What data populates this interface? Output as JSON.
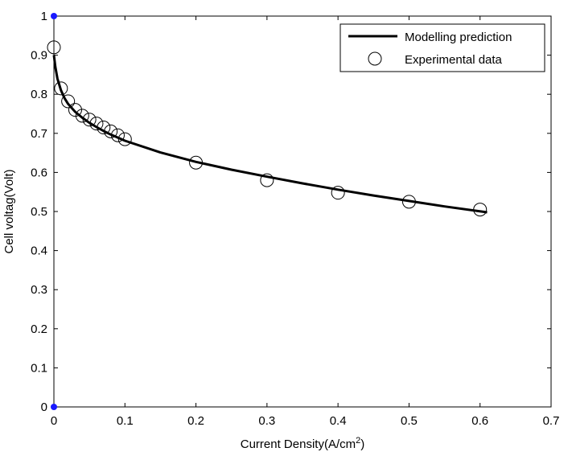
{
  "chart_data": {
    "type": "line",
    "title": "",
    "xlabel": "Current Density(A/cm",
    "xlabel_superscript": "2",
    "xlabel_suffix": ")",
    "ylabel": "Cell voltag(Volt)",
    "xlim": [
      0,
      0.7
    ],
    "ylim": [
      0,
      1
    ],
    "x_ticks": [
      0,
      0.1,
      0.2,
      0.3,
      0.4,
      0.5,
      0.6,
      0.7
    ],
    "y_ticks": [
      0,
      0.1,
      0.2,
      0.3,
      0.4,
      0.5,
      0.6,
      0.7,
      0.8,
      0.9,
      1
    ],
    "x_tick_labels": [
      "0",
      "0.1",
      "0.2",
      "0.3",
      "0.4",
      "0.5",
      "0.6",
      "0.7"
    ],
    "y_tick_labels": [
      "0",
      "0.1",
      "0.2",
      "0.3",
      "0.4",
      "0.5",
      "0.6",
      "0.7",
      "0.8",
      "0.9",
      "1"
    ],
    "grid": false,
    "legend_position": "top-right",
    "series": [
      {
        "name": "Modelling prediction",
        "style": "line",
        "color": "#000000",
        "x": [
          0,
          0.002,
          0.005,
          0.01,
          0.015,
          0.02,
          0.03,
          0.04,
          0.05,
          0.06,
          0.07,
          0.08,
          0.09,
          0.1,
          0.15,
          0.2,
          0.25,
          0.3,
          0.35,
          0.4,
          0.45,
          0.5,
          0.55,
          0.61
        ],
        "y": [
          0.9,
          0.87,
          0.84,
          0.81,
          0.79,
          0.775,
          0.755,
          0.74,
          0.727,
          0.716,
          0.706,
          0.697,
          0.689,
          0.681,
          0.651,
          0.627,
          0.607,
          0.589,
          0.572,
          0.556,
          0.541,
          0.527,
          0.513,
          0.498
        ]
      },
      {
        "name": "Experimental data",
        "style": "marker-circle",
        "color": "#000000",
        "x": [
          0,
          0.01,
          0.02,
          0.03,
          0.04,
          0.05,
          0.06,
          0.07,
          0.08,
          0.09,
          0.1,
          0.2,
          0.3,
          0.4,
          0.5,
          0.6
        ],
        "y": [
          0.92,
          0.815,
          0.782,
          0.76,
          0.745,
          0.735,
          0.725,
          0.715,
          0.705,
          0.695,
          0.685,
          0.625,
          0.58,
          0.548,
          0.525,
          0.505
        ]
      }
    ],
    "highlight_points": [
      {
        "x": 0,
        "y": 1,
        "color": "#1a1aff"
      },
      {
        "x": 0,
        "y": 0,
        "color": "#1a1aff"
      }
    ]
  }
}
